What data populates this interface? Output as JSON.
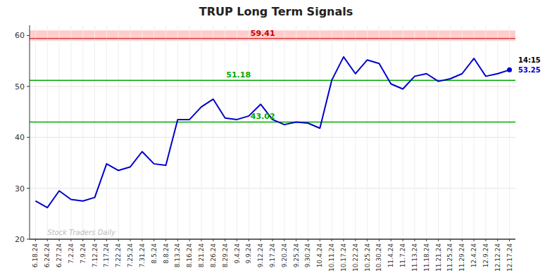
{
  "chart_data": {
    "type": "line",
    "title": "TRUP Long Term Signals",
    "categories": [
      "6.18.24",
      "6.24.24",
      "6.27.24",
      "7.2.24",
      "7.9.24",
      "7.12.24",
      "7.17.24",
      "7.22.24",
      "7.25.24",
      "7.31.24",
      "8.5.24",
      "8.8.24",
      "8.13.24",
      "8.16.24",
      "8.21.24",
      "8.26.24",
      "8.29.24",
      "9.4.24",
      "9.9.24",
      "9.12.24",
      "9.17.24",
      "9.20.24",
      "9.25.24",
      "9.30.24",
      "10.4.24",
      "10.11.24",
      "10.17.24",
      "10.22.24",
      "10.25.24",
      "10.30.24",
      "11.4.24",
      "11.7.24",
      "11.13.24",
      "11.18.24",
      "11.21.24",
      "11.25.24",
      "11.29.24",
      "12.4.24",
      "12.9.24",
      "12.12.24",
      "12.17.24"
    ],
    "values": [
      27.5,
      26.2,
      29.5,
      27.8,
      27.5,
      28.2,
      34.8,
      33.5,
      34.2,
      37.2,
      34.8,
      34.5,
      43.5,
      43.5,
      46.0,
      47.5,
      43.8,
      43.5,
      44.2,
      46.5,
      43.5,
      42.5,
      43.0,
      42.8,
      41.8,
      51.2,
      55.8,
      52.5,
      55.2,
      54.5,
      50.5,
      49.5,
      52.0,
      52.5,
      51.0,
      51.5,
      52.5,
      55.5,
      52.0,
      52.5,
      53.25
    ],
    "color": "#0000cc",
    "ylim": [
      20,
      62
    ],
    "yticks": [
      20,
      30,
      40,
      50,
      60
    ],
    "grid": true,
    "band": {
      "from": 59.0,
      "to": 61.0,
      "color": "#ffcccc"
    },
    "reference_lines": [
      {
        "value": 59.41,
        "label": "59.41",
        "color": "#cc0000"
      },
      {
        "value": 51.18,
        "label": "51.18",
        "color": "#00aa00"
      },
      {
        "value": 43.02,
        "label": "43.02",
        "color": "#00aa00"
      }
    ],
    "time_label": "14:15",
    "watermark": {
      "text": "Stock Traders Daily",
      "color": "#bbbbbb"
    }
  }
}
